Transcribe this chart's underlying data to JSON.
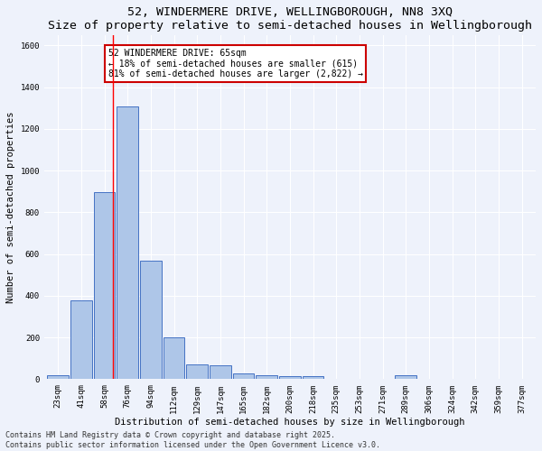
{
  "title": "52, WINDERMERE DRIVE, WELLINGBOROUGH, NN8 3XQ",
  "subtitle": "Size of property relative to semi-detached houses in Wellingborough",
  "xlabel": "Distribution of semi-detached houses by size in Wellingborough",
  "ylabel": "Number of semi-detached properties",
  "bins": [
    "23sqm",
    "41sqm",
    "58sqm",
    "76sqm",
    "94sqm",
    "112sqm",
    "129sqm",
    "147sqm",
    "165sqm",
    "182sqm",
    "200sqm",
    "218sqm",
    "235sqm",
    "253sqm",
    "271sqm",
    "289sqm",
    "306sqm",
    "324sqm",
    "342sqm",
    "359sqm",
    "377sqm"
  ],
  "bar_values": [
    20,
    380,
    895,
    1310,
    570,
    200,
    70,
    65,
    28,
    20,
    15,
    13,
    0,
    0,
    0,
    20,
    0,
    0,
    0,
    0,
    0
  ],
  "bar_color": "#aec6e8",
  "bar_edge_color": "#4472c4",
  "red_line_bin_index": 2.35,
  "annotation_text": "52 WINDERMERE DRIVE: 65sqm\n← 18% of semi-detached houses are smaller (615)\n81% of semi-detached houses are larger (2,822) →",
  "annotation_box_color": "#ffffff",
  "annotation_box_edge": "#cc0000",
  "footer_line1": "Contains HM Land Registry data © Crown copyright and database right 2025.",
  "footer_line2": "Contains public sector information licensed under the Open Government Licence v3.0.",
  "ylim": [
    0,
    1650
  ],
  "yticks": [
    0,
    200,
    400,
    600,
    800,
    1000,
    1200,
    1400,
    1600
  ],
  "bg_color": "#eef2fb",
  "grid_color": "#ffffff",
  "title_fontsize": 9.5,
  "subtitle_fontsize": 8.5,
  "axis_label_fontsize": 7.5,
  "tick_fontsize": 6.5,
  "annotation_fontsize": 7,
  "footer_fontsize": 6
}
